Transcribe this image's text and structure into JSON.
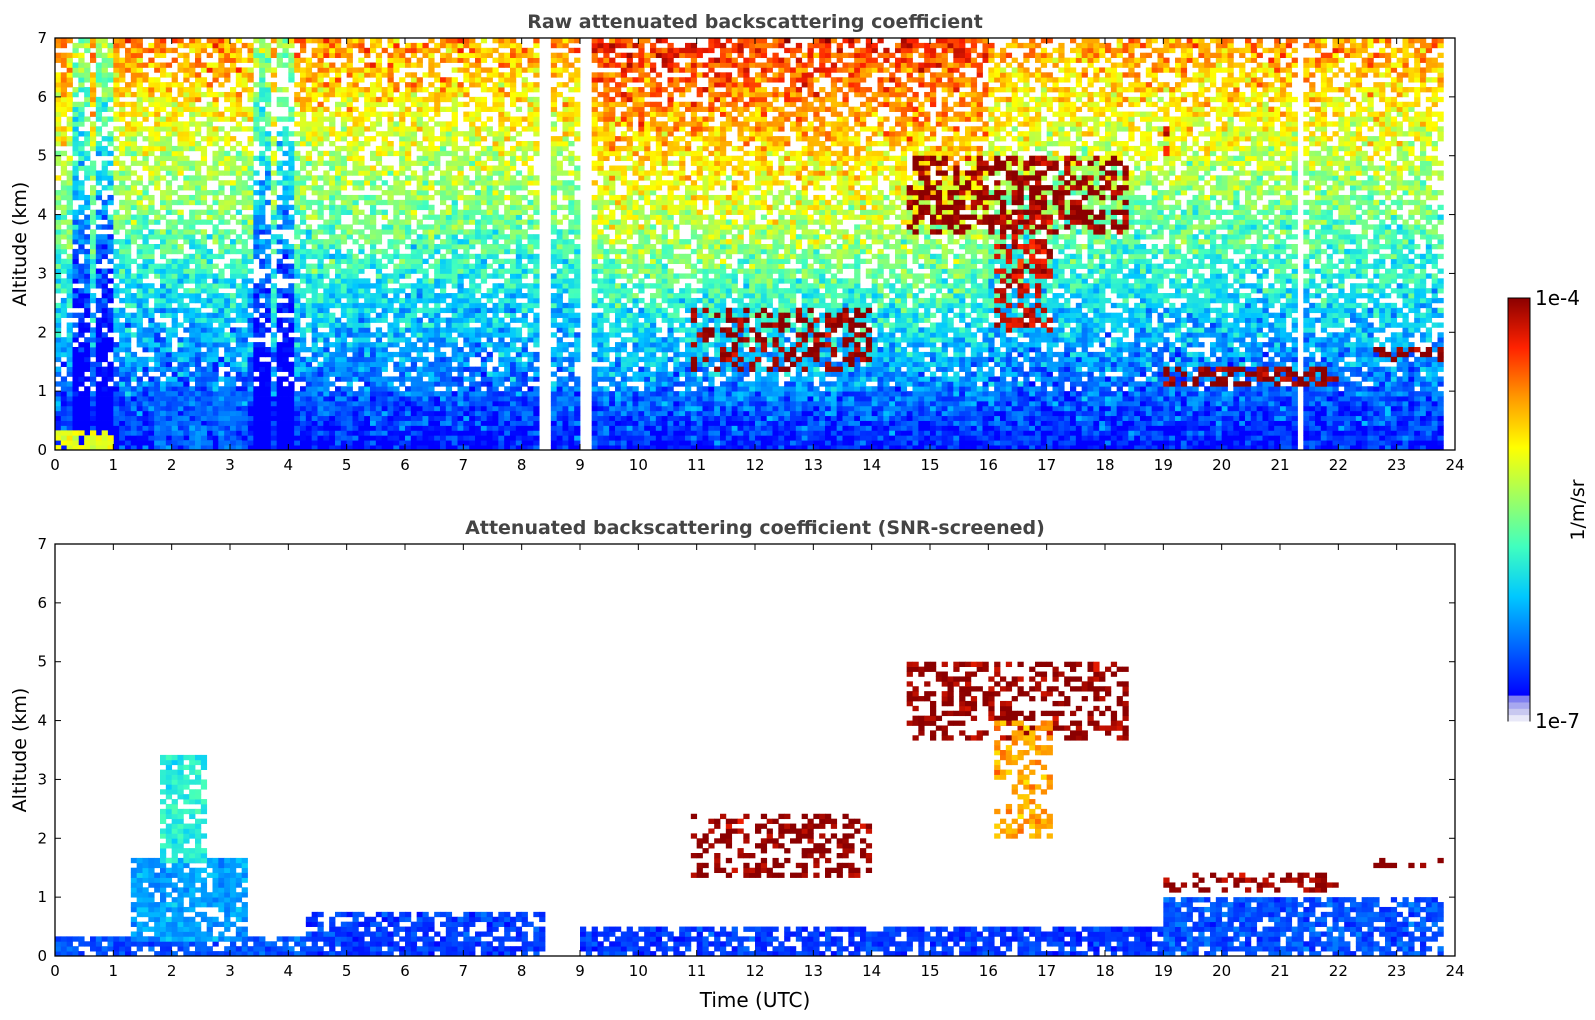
{
  "chart_data": [
    {
      "type": "heatmap",
      "title": "Raw attenuated backscattering coefficient",
      "xlabel": "",
      "ylabel": "Altitude (km)",
      "xlim": [
        0,
        24
      ],
      "ylim": [
        0,
        7
      ],
      "xticks": [
        "0",
        "1",
        "2",
        "3",
        "4",
        "5",
        "6",
        "7",
        "8",
        "9",
        "10",
        "11",
        "12",
        "13",
        "14",
        "15",
        "16",
        "17",
        "18",
        "19",
        "20",
        "21",
        "22",
        "23",
        "24"
      ],
      "yticks": [
        "0",
        "1",
        "2",
        "3",
        "4",
        "5",
        "6",
        "7"
      ],
      "grid": false,
      "layers": [
        {
          "x": [
            0,
            1.0
          ],
          "y_bottom": 0,
          "y_top": 0.3,
          "log10_value": -5.2
        },
        {
          "x": [
            1.7,
            3.3
          ],
          "y_bottom": 0,
          "y_top": 1.0,
          "log10_value": -6.6
        },
        {
          "x": [
            10.9,
            14.0
          ],
          "y_bottom": 1.4,
          "y_top": 2.4,
          "log10_value": -4.0
        },
        {
          "x": [
            14.6,
            18.4
          ],
          "y_bottom": 3.7,
          "y_top": 5.0,
          "log10_value": -4.0
        },
        {
          "x": [
            16.2,
            17.1
          ],
          "y_bottom": 2.0,
          "y_top": 4.0,
          "log10_value": -4.2
        },
        {
          "x": [
            19.0,
            19.2
          ],
          "y_bottom": 5.0,
          "y_top": 5.5,
          "log10_value": -4.3
        },
        {
          "x": [
            19.0,
            22.0
          ],
          "y_bottom": 1.1,
          "y_top": 1.4,
          "log10_value": -4.0
        },
        {
          "x": [
            22.6,
            23.8
          ],
          "y_bottom": 1.5,
          "y_top": 1.7,
          "log10_value": -4.0
        }
      ]
    },
    {
      "type": "heatmap",
      "title": "Attenuated backscattering coefficient (SNR-screened)",
      "xlabel": "Time (UTC)",
      "ylabel": "Altitude (km)",
      "xlim": [
        0,
        24
      ],
      "ylim": [
        0,
        7
      ],
      "xticks": [
        "0",
        "1",
        "2",
        "3",
        "4",
        "5",
        "6",
        "7",
        "8",
        "9",
        "10",
        "11",
        "12",
        "13",
        "14",
        "15",
        "16",
        "17",
        "18",
        "19",
        "20",
        "21",
        "22",
        "23",
        "24"
      ],
      "yticks": [
        "0",
        "1",
        "2",
        "3",
        "4",
        "5",
        "6",
        "7"
      ],
      "grid": false,
      "layers": [
        {
          "x": [
            0,
            4.2
          ],
          "y_bottom": 0,
          "y_top": 0.3,
          "log10_value": -6.7
        },
        {
          "x": [
            1.3,
            3.3
          ],
          "y_bottom": 0.3,
          "y_top": 1.6,
          "log10_value": -6.4
        },
        {
          "x": [
            1.8,
            2.6
          ],
          "y_bottom": 1.6,
          "y_top": 3.4,
          "log10_value": -6.0
        },
        {
          "x": [
            4.3,
            8.3
          ],
          "y_bottom": 0,
          "y_top": 0.75,
          "log10_value": -6.8
        },
        {
          "x": [
            9.0,
            19.0
          ],
          "y_bottom": 0,
          "y_top": 0.5,
          "log10_value": -6.8
        },
        {
          "x": [
            19.0,
            23.8
          ],
          "y_bottom": 0,
          "y_top": 0.95,
          "log10_value": -6.7
        },
        {
          "x": [
            10.9,
            14.0
          ],
          "y_bottom": 1.4,
          "y_top": 2.4,
          "log10_value": -4.0
        },
        {
          "x": [
            14.6,
            18.4
          ],
          "y_bottom": 3.7,
          "y_top": 5.0,
          "log10_value": -4.0
        },
        {
          "x": [
            16.2,
            17.1
          ],
          "y_bottom": 2.0,
          "y_top": 4.0,
          "log10_value": -4.8
        },
        {
          "x": [
            19.0,
            22.0
          ],
          "y_bottom": 1.1,
          "y_top": 1.4,
          "log10_value": -4.0
        },
        {
          "x": [
            22.6,
            23.8
          ],
          "y_bottom": 1.5,
          "y_top": 1.6,
          "log10_value": -4.0
        }
      ]
    }
  ],
  "colorbar": {
    "label": "1/m/sr",
    "max_label": "1e-4",
    "min_label": "1e-7",
    "range_log10": [
      -7,
      -4
    ],
    "colormap": "jet",
    "low_colors": [
      "#e8e8f8",
      "#c8c8f0",
      "#a8a8f0",
      "#8080f0"
    ],
    "colors": [
      "#0000ff",
      "#0066ff",
      "#00c8ff",
      "#40ffbf",
      "#a0ff60",
      "#ffff00",
      "#ff9900",
      "#ff2200",
      "#8b0000"
    ]
  },
  "colors": {
    "title": "#444444",
    "axes": "#000000",
    "curtain_white": "#ffffff"
  }
}
